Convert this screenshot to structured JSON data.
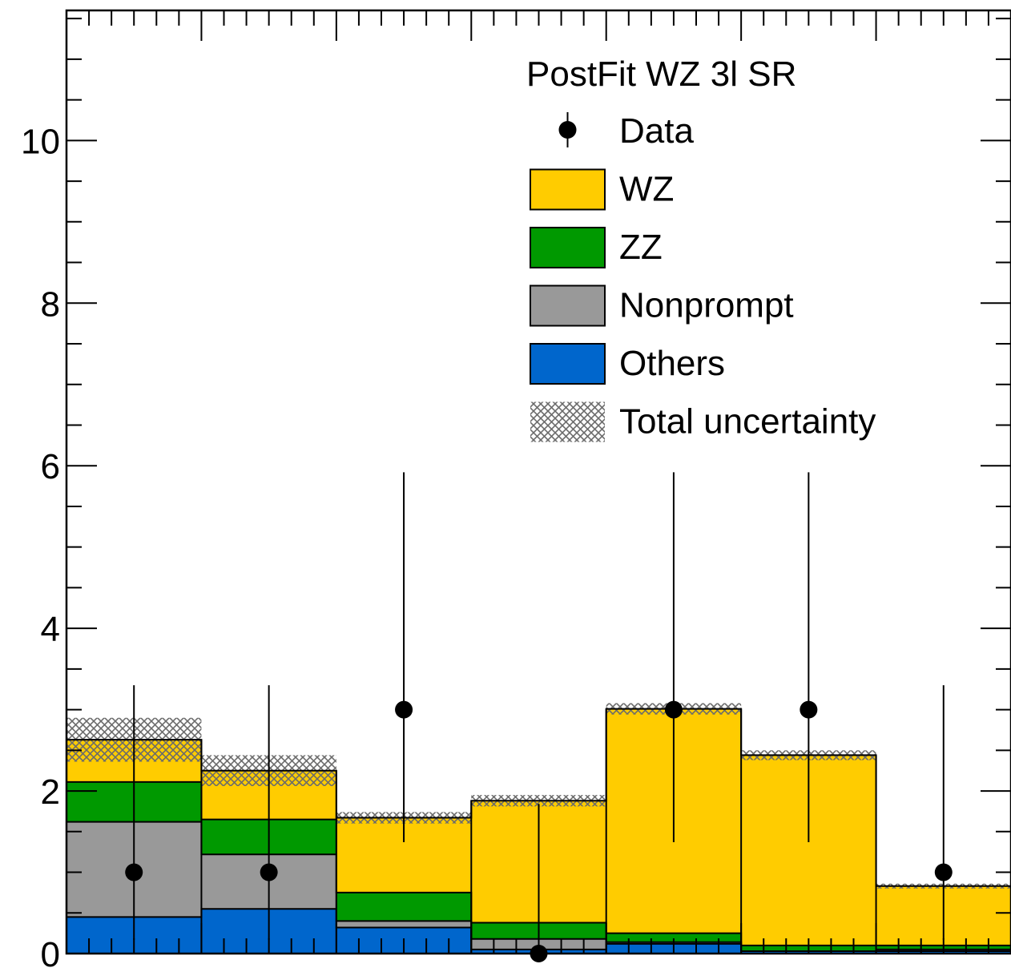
{
  "chart_data": {
    "type": "bar",
    "stacked": true,
    "title": "",
    "xlabel": "",
    "ylabel": "",
    "ylim": [
      0,
      11.6
    ],
    "yticks": [
      0,
      2,
      4,
      6,
      8,
      10
    ],
    "ytick_labels": [
      "0",
      "2",
      "4",
      "6",
      "8",
      "10"
    ],
    "n_bins": 7,
    "legend": {
      "title": "PostFit WZ 3l SR",
      "placement": "top-right",
      "entries": [
        {
          "label": "Data",
          "kind": "marker"
        },
        {
          "label": "WZ",
          "kind": "fill",
          "color": "#ffcc00"
        },
        {
          "label": "ZZ",
          "kind": "fill",
          "color": "#009900"
        },
        {
          "label": "Nonprompt",
          "kind": "fill",
          "color": "#999999"
        },
        {
          "label": "Others",
          "kind": "fill",
          "color": "#0066cc"
        },
        {
          "label": "Total uncertainty",
          "kind": "hatch",
          "color": "#666666"
        }
      ]
    },
    "series": [
      {
        "name": "Others",
        "color": "#0066cc",
        "values": [
          0.45,
          0.55,
          0.32,
          0.05,
          0.12,
          0.03,
          0.03
        ]
      },
      {
        "name": "Nonprompt",
        "color": "#999999",
        "values": [
          1.17,
          0.67,
          0.08,
          0.13,
          0.02,
          0.0,
          0.02
        ]
      },
      {
        "name": "ZZ",
        "color": "#009900",
        "values": [
          0.49,
          0.43,
          0.35,
          0.2,
          0.11,
          0.07,
          0.05
        ]
      },
      {
        "name": "WZ",
        "color": "#ffcc00",
        "values": [
          0.52,
          0.6,
          0.92,
          1.5,
          2.76,
          2.34,
          0.73
        ]
      }
    ],
    "totals": [
      2.63,
      2.25,
      1.67,
      1.88,
      3.01,
      2.44,
      0.83
    ],
    "uncertainty": [
      0.27,
      0.19,
      0.07,
      0.07,
      0.07,
      0.06,
      0.03
    ],
    "data_points": {
      "name": "Data",
      "values": [
        1,
        1,
        3,
        0,
        3,
        3,
        1
      ],
      "err_low": [
        0.83,
        0.83,
        1.63,
        0.0,
        1.63,
        1.63,
        0.83
      ],
      "err_high": [
        2.3,
        2.3,
        2.92,
        1.84,
        2.92,
        2.92,
        2.3
      ]
    }
  }
}
